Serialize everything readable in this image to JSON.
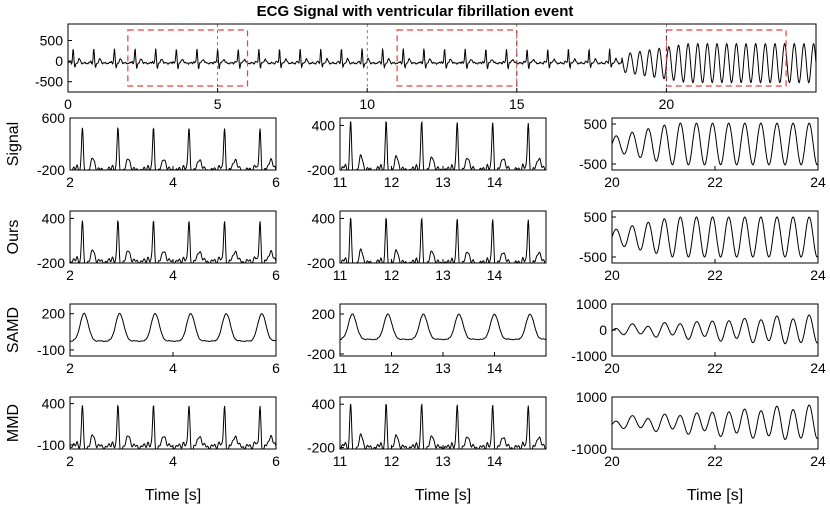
{
  "title": "ECG Signal with ventricular fibrillation event",
  "xlabel": "Time [s]",
  "row_labels": [
    "Signal",
    "Ours",
    "SAMD",
    "MMD"
  ],
  "colors": {
    "line": "#000000",
    "highlight": "#e8413c",
    "axes": "#000000"
  },
  "chart_data": [
    {
      "type": "line",
      "panel": "overview",
      "title": "ECG Signal with ventricular fibrillation event",
      "xlim": [
        0,
        25
      ],
      "ylim": [
        -750,
        900
      ],
      "xticks": [
        0,
        5,
        10,
        15,
        20
      ],
      "yticks": [
        500,
        0,
        -500
      ],
      "highlight_windows": [
        [
          2,
          6
        ],
        [
          11,
          15
        ],
        [
          20,
          24
        ]
      ],
      "dashed_lines_x": [
        5,
        10,
        15,
        20
      ],
      "series": [
        {
          "wave": "ecg",
          "amp": 350,
          "offset": -50,
          "rate": 1.45,
          "vf_start": 18.5
        }
      ]
    },
    {
      "type": "line",
      "row": "Signal",
      "col": 1,
      "xlim": [
        2,
        6
      ],
      "ylim": [
        -200,
        600
      ],
      "xticks": [
        2,
        4,
        6
      ],
      "yticks": [
        600,
        -200
      ],
      "ylabel": "Signal",
      "series": [
        {
          "wave": "ecg",
          "amp": 650,
          "offset": -200,
          "rate": 1.45
        }
      ]
    },
    {
      "type": "line",
      "row": "Signal",
      "col": 2,
      "xlim": [
        11,
        15
      ],
      "ylim": [
        -200,
        500
      ],
      "xticks": [
        11,
        12,
        13,
        14
      ],
      "yticks": [
        400,
        -200
      ],
      "series": [
        {
          "wave": "ecg",
          "amp": 650,
          "offset": -200,
          "rate": 1.45
        }
      ]
    },
    {
      "type": "line",
      "row": "Signal",
      "col": 3,
      "xlim": [
        20,
        24
      ],
      "ylim": [
        -650,
        650
      ],
      "xticks": [
        20,
        22,
        24
      ],
      "yticks": [
        500,
        -500
      ],
      "series": [
        {
          "wave": "vf",
          "amp": 520,
          "offset": 0,
          "rate": 3.2
        }
      ]
    },
    {
      "type": "line",
      "row": "Ours",
      "col": 1,
      "xlim": [
        2,
        6
      ],
      "ylim": [
        -200,
        500
      ],
      "xticks": [
        2,
        4,
        6
      ],
      "yticks": [
        400,
        -200
      ],
      "ylabel": "Ours",
      "series": [
        {
          "wave": "ecg",
          "amp": 550,
          "offset": -180,
          "rate": 1.45
        }
      ]
    },
    {
      "type": "line",
      "row": "Ours",
      "col": 2,
      "xlim": [
        11,
        15
      ],
      "ylim": [
        -200,
        500
      ],
      "xticks": [
        11,
        12,
        13,
        14
      ],
      "yticks": [
        400,
        -200
      ],
      "series": [
        {
          "wave": "ecg",
          "amp": 600,
          "offset": -200,
          "rate": 1.45
        }
      ]
    },
    {
      "type": "line",
      "row": "Ours",
      "col": 3,
      "xlim": [
        20,
        24
      ],
      "ylim": [
        -650,
        650
      ],
      "xticks": [
        20,
        22,
        24
      ],
      "yticks": [
        500,
        -500
      ],
      "series": [
        {
          "wave": "vf",
          "amp": 500,
          "offset": 0,
          "rate": 3.2
        }
      ]
    },
    {
      "type": "line",
      "row": "SAMD",
      "col": 1,
      "xlim": [
        2,
        6
      ],
      "ylim": [
        -150,
        280
      ],
      "xticks": [
        2,
        4,
        6
      ],
      "yticks": [
        200,
        -100
      ],
      "ylabel": "SAMD",
      "series": [
        {
          "wave": "smooth",
          "amp": 190,
          "offset": 40,
          "rate": 1.45
        }
      ]
    },
    {
      "type": "line",
      "row": "SAMD",
      "col": 2,
      "xlim": [
        11,
        15
      ],
      "ylim": [
        -220,
        300
      ],
      "xticks": [
        11,
        12,
        13,
        14
      ],
      "yticks": [
        200,
        -200
      ],
      "series": [
        {
          "wave": "smooth",
          "amp": 210,
          "offset": 20,
          "rate": 1.45
        }
      ]
    },
    {
      "type": "line",
      "row": "SAMD",
      "col": 3,
      "xlim": [
        20,
        24
      ],
      "ylim": [
        -1000,
        1000
      ],
      "xticks": [
        20,
        22,
        24
      ],
      "yticks": [
        1000,
        0,
        -1000
      ],
      "series": [
        {
          "wave": "vf_grow",
          "amp": 500,
          "offset": 0,
          "rate": 3.2
        }
      ]
    },
    {
      "type": "line",
      "row": "MMD",
      "col": 1,
      "xlim": [
        2,
        6
      ],
      "ylim": [
        -150,
        480
      ],
      "xticks": [
        2,
        4,
        6
      ],
      "yticks": [
        400,
        -100
      ],
      "ylabel": "MMD",
      "series": [
        {
          "wave": "ecg",
          "amp": 500,
          "offset": -120,
          "rate": 1.45
        }
      ]
    },
    {
      "type": "line",
      "row": "MMD",
      "col": 2,
      "xlim": [
        11,
        15
      ],
      "ylim": [
        -220,
        500
      ],
      "xticks": [
        11,
        12,
        13,
        14
      ],
      "yticks": [
        400,
        -200
      ],
      "series": [
        {
          "wave": "ecg",
          "amp": 600,
          "offset": -200,
          "rate": 1.45
        }
      ]
    },
    {
      "type": "line",
      "row": "MMD",
      "col": 3,
      "xlim": [
        20,
        24
      ],
      "ylim": [
        -1000,
        1000
      ],
      "xticks": [
        20,
        22,
        24
      ],
      "yticks": [
        1000,
        -1000
      ],
      "series": [
        {
          "wave": "vf_grow",
          "amp": 600,
          "offset": 0,
          "rate": 3.2
        }
      ]
    }
  ]
}
